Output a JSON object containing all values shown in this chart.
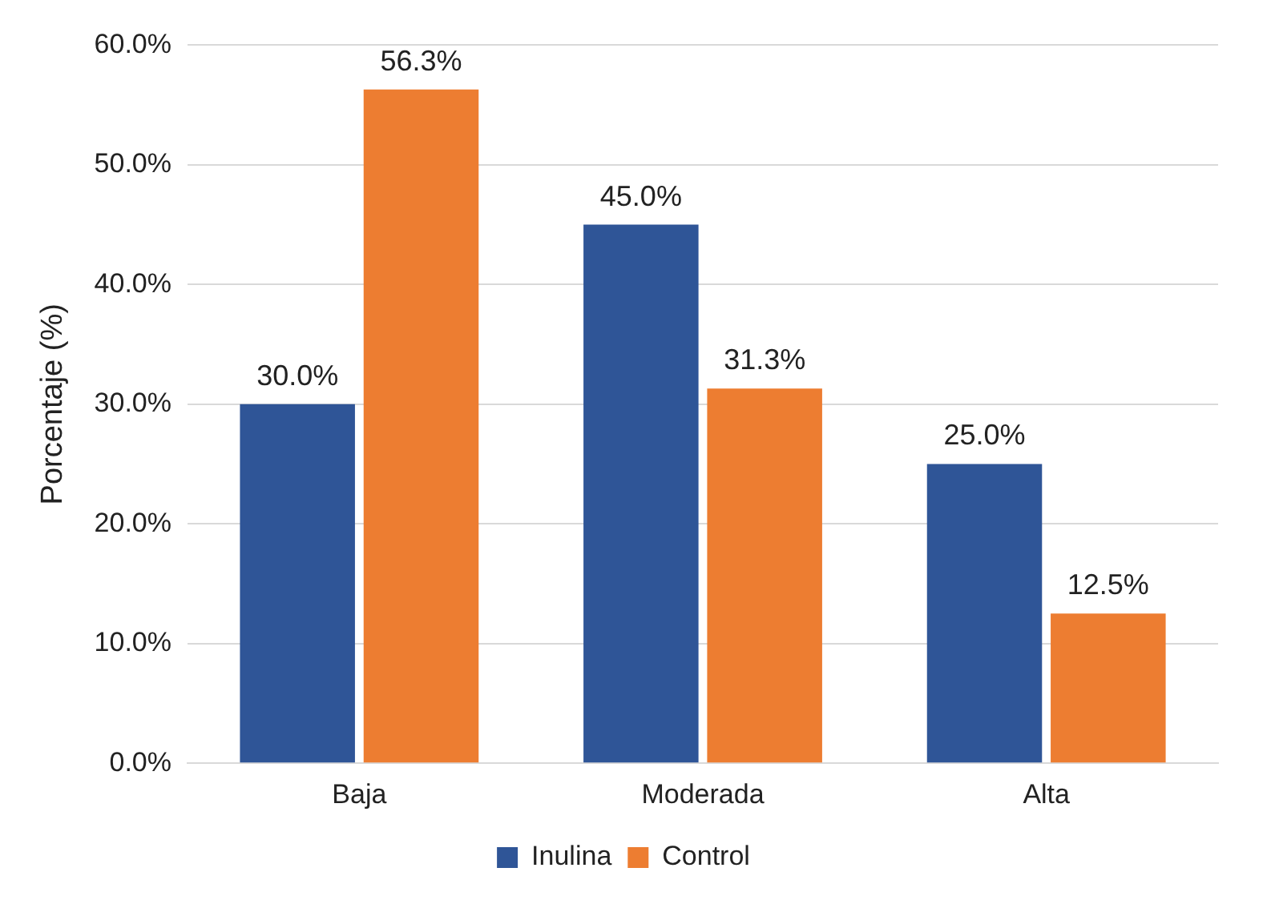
{
  "chart_data": {
    "type": "bar",
    "ylabel": "Porcentaje (%)",
    "categories": [
      "Baja",
      "Moderada",
      "Alta"
    ],
    "series": [
      {
        "name": "Inulina",
        "color": "#2f5597",
        "values": [
          30.0,
          45.0,
          25.0
        ],
        "value_labels": [
          "30.0%",
          "45.0%",
          "25.0%"
        ]
      },
      {
        "name": "Control",
        "color": "#ed7d31",
        "values": [
          56.3,
          31.3,
          12.5
        ],
        "value_labels": [
          "56.3%",
          "31.3%",
          "12.5%"
        ]
      }
    ],
    "ylim": [
      0,
      60
    ],
    "yticks": [
      {
        "value": 0,
        "label": "0.0%"
      },
      {
        "value": 10,
        "label": "10.0%"
      },
      {
        "value": 20,
        "label": "20.0%"
      },
      {
        "value": 30,
        "label": "30.0%"
      },
      {
        "value": 40,
        "label": "40.0%"
      },
      {
        "value": 50,
        "label": "50.0%"
      },
      {
        "value": 60,
        "label": "60.0%"
      }
    ],
    "grid": "y",
    "legend": "bottom"
  }
}
